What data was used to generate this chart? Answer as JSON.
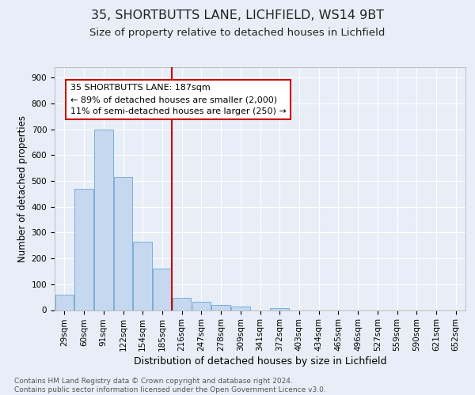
{
  "title1": "35, SHORTBUTTS LANE, LICHFIELD, WS14 9BT",
  "title2": "Size of property relative to detached houses in Lichfield",
  "xlabel": "Distribution of detached houses by size in Lichfield",
  "ylabel": "Number of detached properties",
  "footer1": "Contains HM Land Registry data © Crown copyright and database right 2024.",
  "footer2": "Contains public sector information licensed under the Open Government Licence v3.0.",
  "bar_labels": [
    "29sqm",
    "60sqm",
    "91sqm",
    "122sqm",
    "154sqm",
    "185sqm",
    "216sqm",
    "247sqm",
    "278sqm",
    "309sqm",
    "341sqm",
    "372sqm",
    "403sqm",
    "434sqm",
    "465sqm",
    "496sqm",
    "527sqm",
    "559sqm",
    "590sqm",
    "621sqm",
    "652sqm"
  ],
  "bar_values": [
    60,
    470,
    700,
    515,
    265,
    160,
    47,
    32,
    20,
    15,
    0,
    8,
    0,
    0,
    0,
    0,
    0,
    0,
    0,
    0,
    0
  ],
  "bar_color": "#c5d8f0",
  "bar_edge_color": "#7aafd4",
  "vline_x": 5.5,
  "vline_color": "#cc0000",
  "annotation_lines": [
    "35 SHORTBUTTS LANE: 187sqm",
    "← 89% of detached houses are smaller (2,000)",
    "11% of semi-detached houses are larger (250) →"
  ],
  "ylim": [
    0,
    940
  ],
  "yticks": [
    0,
    100,
    200,
    300,
    400,
    500,
    600,
    700,
    800,
    900
  ],
  "bg_color": "#e8eef7",
  "plot_bg_color": "#e8eef7",
  "grid_color": "#ffffff",
  "title1_fontsize": 11.5,
  "title2_fontsize": 9.5,
  "xlabel_fontsize": 9,
  "ylabel_fontsize": 8.5,
  "tick_fontsize": 7.5,
  "annotation_fontsize": 8,
  "footer_fontsize": 6.5
}
